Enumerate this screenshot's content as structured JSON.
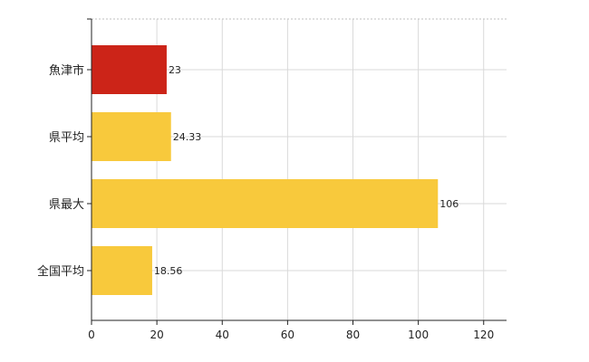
{
  "chart_data": {
    "type": "bar",
    "orientation": "horizontal",
    "categories": [
      "魚津市",
      "県平均",
      "県最大",
      "全国平均"
    ],
    "values": [
      23,
      24.33,
      106,
      18.56
    ],
    "data_labels": [
      "23",
      "24.33",
      "106",
      "18.56"
    ],
    "bar_colors": [
      "#cc2418",
      "#f8c93c",
      "#f8c93c",
      "#f8c93c"
    ],
    "xlim": [
      0,
      127
    ],
    "x_ticks": [
      0,
      20,
      40,
      60,
      80,
      100,
      120
    ],
    "x_tick_labels": [
      "0",
      "20",
      "40",
      "60",
      "80",
      "100",
      "120"
    ],
    "grid": true,
    "grid_color": "#d9d9d9",
    "title": "",
    "xlabel": "",
    "ylabel": ""
  }
}
